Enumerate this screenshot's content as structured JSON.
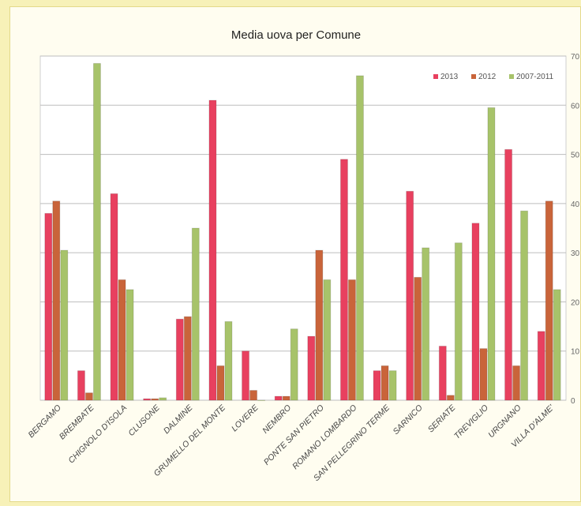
{
  "chart_data": {
    "type": "bar",
    "title": "Media uova per Comune",
    "categories": [
      "BERGAMO",
      "BREMBATE",
      "CHIGNOLO D'ISOLA",
      "CLUSONE",
      "DALMINE",
      "GRUMELLO DEL MONTE",
      "LOVERE",
      "NEMBRO",
      "PONTE SAN PIETRO",
      "ROMANO LOMBARDO",
      "SAN PELLEGRINO TERME",
      "SARNICO",
      "SERIATE",
      "TREVIGLIO",
      "URGNANO",
      "VILLA D'ALME'"
    ],
    "series": [
      {
        "name": "2013",
        "color": "#e8405f",
        "values": [
          38,
          6,
          42,
          0.3,
          16.5,
          61,
          10,
          0.8,
          13,
          49,
          6,
          42.5,
          11,
          36,
          51,
          14
        ]
      },
      {
        "name": "2012",
        "color": "#c9643a",
        "values": [
          40.5,
          1.5,
          24.5,
          0.3,
          17,
          7,
          2,
          0.8,
          30.5,
          24.5,
          7,
          25,
          1,
          10.5,
          7,
          40.5
        ]
      },
      {
        "name": "2007-2011",
        "color": "#a7c36a",
        "values": [
          30.5,
          68.5,
          22.5,
          0.5,
          35,
          16,
          0,
          14.5,
          24.5,
          66,
          6,
          31,
          32,
          59.5,
          38.5,
          22.5
        ]
      }
    ],
    "ylim": [
      0,
      70
    ],
    "yticks": [
      "0",
      "10",
      "20",
      "30",
      "40",
      "50",
      "60",
      "70"
    ],
    "grid": true,
    "legend_position": "top-right"
  }
}
